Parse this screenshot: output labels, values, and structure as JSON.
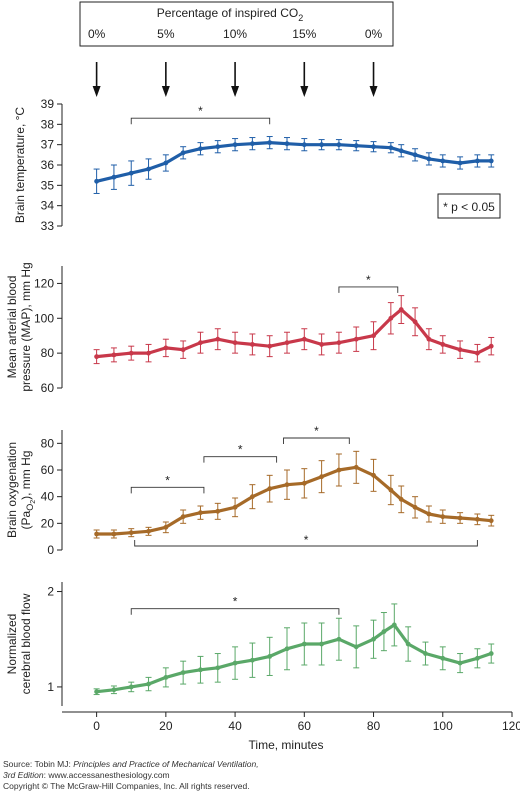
{
  "co2_box": {
    "title": "Percentage of inspired CO",
    "title_sub": "2",
    "phases": [
      {
        "label": "0%",
        "x": 0
      },
      {
        "label": "5%",
        "x": 20
      },
      {
        "label": "10%",
        "x": 40
      },
      {
        "label": "15%",
        "x": 60
      },
      {
        "label": "0%",
        "x": 80
      }
    ]
  },
  "legend": {
    "text": "* p < 0.05"
  },
  "x_axis": {
    "label": "Time, minutes",
    "ticks": [
      0,
      20,
      40,
      60,
      80,
      100,
      120
    ],
    "range": [
      -10,
      120
    ]
  },
  "credits": {
    "line1_prefix": "Source: Tobin MJ: ",
    "line1_book": "Principles and Practice of Mechanical Ventilation,",
    "line2_edition": "3rd Edition",
    "line2_rest": ": www.accessanesthesiology.com",
    "line3": "Copyright © The McGraw-Hill Companies, Inc. All rights reserved."
  },
  "chart_data": [
    {
      "type": "line",
      "color": "#1f5ea8",
      "ylabel_lines": [
        "Brain temperature, °C"
      ],
      "ylim": [
        33,
        39
      ],
      "yticks": [
        33,
        34,
        35,
        36,
        37,
        38,
        39
      ],
      "x": [
        0,
        5,
        10,
        15,
        20,
        25,
        30,
        35,
        40,
        45,
        50,
        55,
        60,
        65,
        70,
        75,
        80,
        85,
        88,
        92,
        96,
        100,
        105,
        110,
        114
      ],
      "y": [
        35.2,
        35.4,
        35.6,
        35.8,
        36.1,
        36.6,
        36.8,
        36.9,
        37.0,
        37.05,
        37.1,
        37.05,
        37.0,
        37.0,
        37.0,
        36.95,
        36.9,
        36.85,
        36.7,
        36.5,
        36.3,
        36.2,
        36.1,
        36.2,
        36.2
      ],
      "err": [
        0.6,
        0.6,
        0.6,
        0.5,
        0.4,
        0.3,
        0.3,
        0.3,
        0.3,
        0.3,
        0.3,
        0.3,
        0.3,
        0.25,
        0.25,
        0.25,
        0.25,
        0.25,
        0.3,
        0.3,
        0.3,
        0.3,
        0.3,
        0.3,
        0.3
      ],
      "brackets": [
        {
          "x1": 10,
          "x2": 50,
          "y": 38.3,
          "side": "top",
          "label": "*"
        }
      ]
    },
    {
      "type": "line",
      "color": "#c8384a",
      "ylabel_lines": [
        "Mean arterial blood",
        "pressure (MAP), mm Hg"
      ],
      "ylim": [
        60,
        130
      ],
      "yticks": [
        60,
        80,
        100,
        120
      ],
      "x": [
        0,
        5,
        10,
        15,
        20,
        25,
        30,
        35,
        40,
        45,
        50,
        55,
        60,
        65,
        70,
        75,
        80,
        85,
        88,
        92,
        96,
        100,
        105,
        110,
        114
      ],
      "y": [
        78,
        79,
        80,
        80,
        83,
        82,
        86,
        88,
        86,
        85,
        84,
        86,
        88,
        85,
        86,
        88,
        90,
        100,
        105,
        98,
        88,
        85,
        82,
        80,
        84
      ],
      "err": [
        4,
        4,
        4,
        5,
        5,
        5,
        6,
        6,
        6,
        6,
        6,
        6,
        6,
        6,
        6,
        7,
        8,
        9,
        8,
        8,
        6,
        5,
        5,
        5,
        5
      ],
      "brackets": [
        {
          "x1": 70,
          "x2": 87,
          "y": 118,
          "side": "top",
          "label": "*"
        }
      ]
    },
    {
      "type": "line",
      "color": "#a66a28",
      "ylabel_lines": [
        "Brain oxygenation",
        "(PaO2), mm Hg"
      ],
      "ylim": [
        0,
        90
      ],
      "yticks": [
        0,
        20,
        40,
        60,
        80
      ],
      "x": [
        0,
        5,
        10,
        15,
        20,
        25,
        30,
        35,
        40,
        45,
        50,
        55,
        60,
        65,
        70,
        75,
        80,
        85,
        88,
        92,
        96,
        100,
        105,
        110,
        114
      ],
      "y": [
        12,
        12,
        13,
        14,
        17,
        25,
        28,
        29,
        32,
        40,
        46,
        49,
        50,
        55,
        60,
        62,
        56,
        45,
        38,
        32,
        27,
        25,
        24,
        23,
        22
      ],
      "err": [
        3,
        3,
        3,
        3,
        4,
        5,
        5,
        6,
        7,
        9,
        10,
        11,
        11,
        12,
        12,
        12,
        12,
        11,
        10,
        8,
        6,
        5,
        4,
        4,
        4
      ],
      "brackets": [
        {
          "x1": 10,
          "x2": 31,
          "y": 47,
          "side": "top",
          "label": "*"
        },
        {
          "x1": 31,
          "x2": 52,
          "y": 70,
          "side": "top",
          "label": "*"
        },
        {
          "x1": 54,
          "x2": 73,
          "y": 84,
          "side": "top",
          "label": "*"
        },
        {
          "x1": 11,
          "x2": 110,
          "y": 3,
          "side": "bottom",
          "label": "*"
        }
      ]
    },
    {
      "type": "line",
      "color": "#5aa868",
      "ylabel_lines": [
        "Normalized",
        "cerebral blood flow"
      ],
      "ylim": [
        0.8,
        2.1
      ],
      "yticks": [
        1,
        2
      ],
      "x": [
        0,
        5,
        10,
        15,
        20,
        25,
        30,
        35,
        40,
        45,
        50,
        55,
        60,
        65,
        70,
        75,
        80,
        83,
        86,
        90,
        95,
        100,
        105,
        110,
        114
      ],
      "y": [
        0.95,
        0.97,
        1.0,
        1.03,
        1.1,
        1.15,
        1.18,
        1.2,
        1.25,
        1.28,
        1.32,
        1.4,
        1.45,
        1.45,
        1.5,
        1.42,
        1.5,
        1.58,
        1.65,
        1.45,
        1.35,
        1.3,
        1.25,
        1.3,
        1.35
      ],
      "err": [
        0.03,
        0.04,
        0.05,
        0.07,
        0.1,
        0.12,
        0.14,
        0.15,
        0.17,
        0.18,
        0.2,
        0.22,
        0.22,
        0.22,
        0.22,
        0.22,
        0.2,
        0.2,
        0.22,
        0.18,
        0.12,
        0.12,
        0.1,
        0.1,
        0.1
      ],
      "brackets": [
        {
          "x1": 10,
          "x2": 70,
          "y": 1.82,
          "side": "top",
          "label": "*"
        }
      ]
    }
  ]
}
